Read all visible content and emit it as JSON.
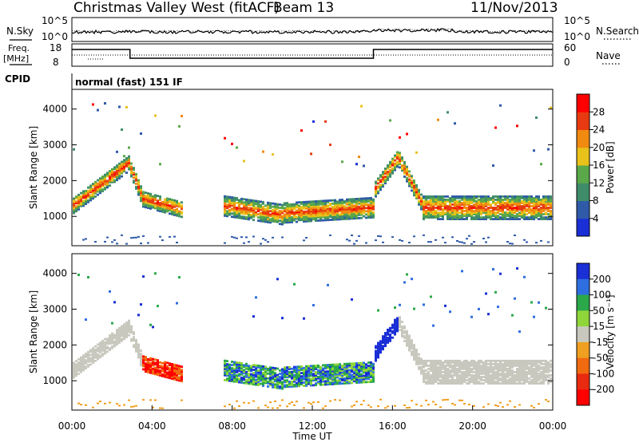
{
  "header": {
    "title": "Christmas Valley West (fitACF)",
    "beam": "Beam 13",
    "date": "11/Nov/2013"
  },
  "nsky_panel": {
    "left_label": "N.Sky",
    "right_label": "N.Search",
    "left_ticks": [
      "10^5",
      "10^0"
    ],
    "right_ticks": [
      "10^5",
      "10^0"
    ]
  },
  "freq_panel": {
    "left_label_1": "Freq.",
    "left_label_2": "[MHz]",
    "left_ticks": [
      "18",
      "8"
    ],
    "right_ticks": [
      "60",
      "0"
    ],
    "right_label": "Nave"
  },
  "cpid": {
    "label": "CPID",
    "value": "normal (fast) 151 IF"
  },
  "x_axis": {
    "label": "Time UT",
    "ticks": [
      "00:00",
      "04:00",
      "08:00",
      "12:00",
      "16:00",
      "20:00",
      "00:00"
    ]
  },
  "y_axis": {
    "label": "Slant Range [km]",
    "ticks": [
      "1000",
      "2000",
      "3000",
      "4000"
    ]
  },
  "chart_data": [
    {
      "type": "heatmap",
      "name": "power",
      "xlabel": "Time UT",
      "ylabel": "Slant Range [km]",
      "xlim_hours": [
        0,
        24
      ],
      "ylim_km": [
        180,
        4550
      ],
      "colorbar": {
        "label": "Power [dB]",
        "ticks": [
          "4",
          "8",
          "12",
          "16",
          "20",
          "24",
          "28"
        ],
        "colors": [
          "#1a2fd6",
          "#2f5aa8",
          "#3f8c6a",
          "#5aa84a",
          "#e8c21a",
          "#f08a10",
          "#e83a10",
          "#ff0000"
        ]
      }
    },
    {
      "type": "heatmap",
      "name": "velocity",
      "xlabel": "Time UT",
      "ylabel": "Slant Range [km]",
      "xlim_hours": [
        0,
        24
      ],
      "ylim_km": [
        180,
        4550
      ],
      "colorbar": {
        "label": "Velocity [m s⁻¹]",
        "ticks": [
          "200",
          "100",
          "50",
          "15",
          "-15",
          "-50",
          "-100",
          "-200"
        ],
        "colors": [
          "#1a2fd6",
          "#2f6ee0",
          "#2aa84a",
          "#8fd63a",
          "#c8c8be",
          "#f0a020",
          "#f06a10",
          "#e82a10",
          "#ff0000"
        ]
      }
    }
  ]
}
